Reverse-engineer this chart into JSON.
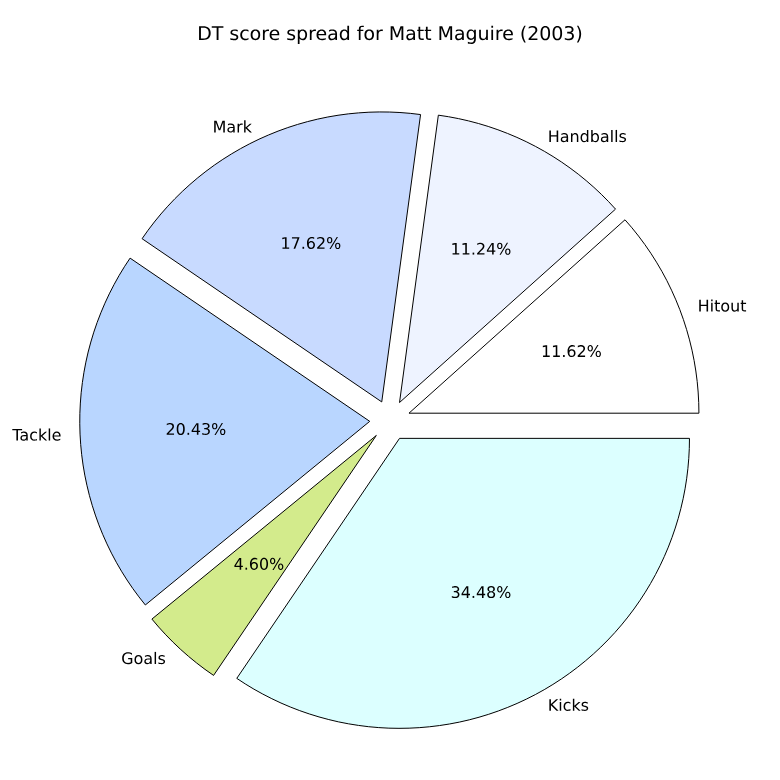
{
  "chart_data": {
    "type": "pie",
    "title": "DT score spread for Matt Maguire (2003)",
    "categories": [
      "Hitout",
      "Handballs",
      "Mark",
      "Tackle",
      "Goals",
      "Kicks"
    ],
    "values": [
      11.62,
      11.24,
      17.62,
      20.43,
      4.6,
      34.48
    ],
    "value_labels": [
      "11.62%",
      "11.24%",
      "17.62%",
      "20.43%",
      "4.60%",
      "34.48%"
    ],
    "colors": [
      "#ffffff",
      "#eef3ff",
      "#c8daff",
      "#b9d6ff",
      "#d3eb8c",
      "#dcffff"
    ]
  }
}
